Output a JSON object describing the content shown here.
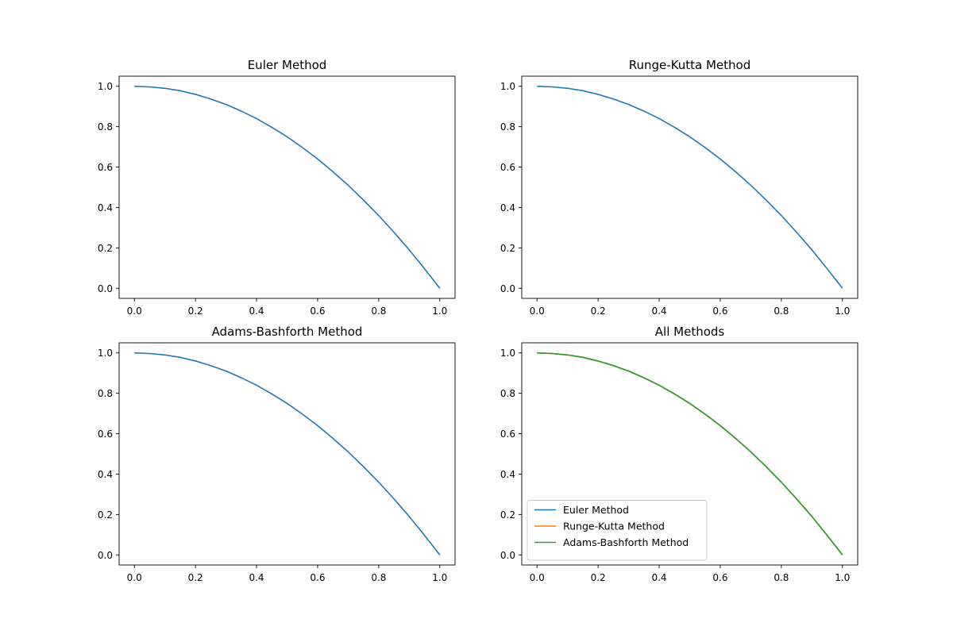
{
  "colors": {
    "euler": "#1f77b4",
    "runge_kutta": "#ff7f0e",
    "adams_bashforth": "#2ca02c",
    "axes": "#000000",
    "background": "#ffffff",
    "legend_border": "#cccccc"
  },
  "chart_data": [
    {
      "type": "line",
      "title": "Euler Method",
      "xlabel": "",
      "ylabel": "",
      "xlim": [
        -0.05,
        1.05
      ],
      "ylim": [
        -0.05,
        1.05
      ],
      "xticks": [
        "0.0",
        "0.2",
        "0.4",
        "0.6",
        "0.8",
        "1.0"
      ],
      "yticks": [
        "0.0",
        "0.2",
        "0.4",
        "0.6",
        "0.8",
        "1.0"
      ],
      "grid": false,
      "legend": null,
      "series": [
        {
          "color": "#1f77b4",
          "x": [
            0.0,
            0.05,
            0.1,
            0.15,
            0.2,
            0.25,
            0.3,
            0.35,
            0.4,
            0.45,
            0.5,
            0.55,
            0.6,
            0.65,
            0.7,
            0.75,
            0.8,
            0.85,
            0.9,
            0.95,
            1.0
          ],
          "y": [
            1.0,
            0.997,
            0.99,
            0.978,
            0.96,
            0.937,
            0.91,
            0.877,
            0.84,
            0.797,
            0.75,
            0.697,
            0.64,
            0.577,
            0.51,
            0.437,
            0.36,
            0.277,
            0.19,
            0.097,
            0.0
          ]
        }
      ]
    },
    {
      "type": "line",
      "title": "Runge-Kutta Method",
      "xlabel": "",
      "ylabel": "",
      "xlim": [
        -0.05,
        1.05
      ],
      "ylim": [
        -0.05,
        1.05
      ],
      "xticks": [
        "0.0",
        "0.2",
        "0.4",
        "0.6",
        "0.8",
        "1.0"
      ],
      "yticks": [
        "0.0",
        "0.2",
        "0.4",
        "0.6",
        "0.8",
        "1.0"
      ],
      "grid": false,
      "legend": null,
      "series": [
        {
          "color": "#1f77b4",
          "x": [
            0.0,
            0.05,
            0.1,
            0.15,
            0.2,
            0.25,
            0.3,
            0.35,
            0.4,
            0.45,
            0.5,
            0.55,
            0.6,
            0.65,
            0.7,
            0.75,
            0.8,
            0.85,
            0.9,
            0.95,
            1.0
          ],
          "y": [
            1.0,
            0.997,
            0.99,
            0.978,
            0.96,
            0.937,
            0.91,
            0.877,
            0.84,
            0.797,
            0.75,
            0.697,
            0.64,
            0.577,
            0.51,
            0.437,
            0.36,
            0.277,
            0.19,
            0.097,
            0.0
          ]
        }
      ]
    },
    {
      "type": "line",
      "title": "Adams-Bashforth Method",
      "xlabel": "",
      "ylabel": "",
      "xlim": [
        -0.05,
        1.05
      ],
      "ylim": [
        -0.05,
        1.05
      ],
      "xticks": [
        "0.0",
        "0.2",
        "0.4",
        "0.6",
        "0.8",
        "1.0"
      ],
      "yticks": [
        "0.0",
        "0.2",
        "0.4",
        "0.6",
        "0.8",
        "1.0"
      ],
      "grid": false,
      "legend": null,
      "series": [
        {
          "color": "#1f77b4",
          "x": [
            0.0,
            0.05,
            0.1,
            0.15,
            0.2,
            0.25,
            0.3,
            0.35,
            0.4,
            0.45,
            0.5,
            0.55,
            0.6,
            0.65,
            0.7,
            0.75,
            0.8,
            0.85,
            0.9,
            0.95,
            1.0
          ],
          "y": [
            1.0,
            0.997,
            0.99,
            0.978,
            0.96,
            0.937,
            0.91,
            0.877,
            0.84,
            0.797,
            0.75,
            0.697,
            0.64,
            0.577,
            0.51,
            0.437,
            0.36,
            0.277,
            0.19,
            0.097,
            0.0
          ]
        }
      ]
    },
    {
      "type": "line",
      "title": "All Methods",
      "xlabel": "",
      "ylabel": "",
      "xlim": [
        -0.05,
        1.05
      ],
      "ylim": [
        -0.05,
        1.05
      ],
      "xticks": [
        "0.0",
        "0.2",
        "0.4",
        "0.6",
        "0.8",
        "1.0"
      ],
      "yticks": [
        "0.0",
        "0.2",
        "0.4",
        "0.6",
        "0.8",
        "1.0"
      ],
      "grid": false,
      "legend": "lower-left",
      "series": [
        {
          "name": "Euler Method",
          "color": "#1f77b4",
          "x": [
            0.0,
            0.05,
            0.1,
            0.15,
            0.2,
            0.25,
            0.3,
            0.35,
            0.4,
            0.45,
            0.5,
            0.55,
            0.6,
            0.65,
            0.7,
            0.75,
            0.8,
            0.85,
            0.9,
            0.95,
            1.0
          ],
          "y": [
            1.0,
            0.997,
            0.99,
            0.978,
            0.96,
            0.937,
            0.91,
            0.877,
            0.84,
            0.797,
            0.75,
            0.697,
            0.64,
            0.577,
            0.51,
            0.437,
            0.36,
            0.277,
            0.19,
            0.097,
            0.0
          ]
        },
        {
          "name": "Runge-Kutta Method",
          "color": "#ff7f0e",
          "x": [
            0.0,
            0.05,
            0.1,
            0.15,
            0.2,
            0.25,
            0.3,
            0.35,
            0.4,
            0.45,
            0.5,
            0.55,
            0.6,
            0.65,
            0.7,
            0.75,
            0.8,
            0.85,
            0.9,
            0.95,
            1.0
          ],
          "y": [
            1.0,
            0.997,
            0.99,
            0.978,
            0.96,
            0.937,
            0.91,
            0.877,
            0.84,
            0.797,
            0.75,
            0.697,
            0.64,
            0.577,
            0.51,
            0.437,
            0.36,
            0.277,
            0.19,
            0.097,
            0.0
          ]
        },
        {
          "name": "Adams-Bashforth Method",
          "color": "#2ca02c",
          "x": [
            0.0,
            0.05,
            0.1,
            0.15,
            0.2,
            0.25,
            0.3,
            0.35,
            0.4,
            0.45,
            0.5,
            0.55,
            0.6,
            0.65,
            0.7,
            0.75,
            0.8,
            0.85,
            0.9,
            0.95,
            1.0
          ],
          "y": [
            1.0,
            0.997,
            0.99,
            0.978,
            0.96,
            0.937,
            0.91,
            0.877,
            0.84,
            0.797,
            0.75,
            0.697,
            0.64,
            0.577,
            0.51,
            0.437,
            0.36,
            0.277,
            0.19,
            0.097,
            0.0
          ]
        }
      ]
    }
  ]
}
